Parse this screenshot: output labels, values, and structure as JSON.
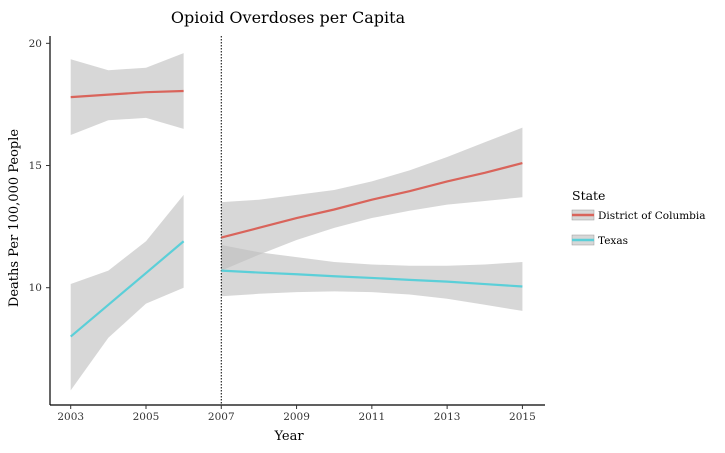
{
  "chart_data": {
    "type": "line",
    "title": "Opioid Overdoses per Capita",
    "xlabel": "Year",
    "ylabel": "Deaths Per 100,000 People",
    "xlim": [
      2002.45,
      2015.6
    ],
    "ylim": [
      5.2,
      20.3
    ],
    "x_ticks": [
      2003,
      2005,
      2007,
      2009,
      2011,
      2013,
      2015
    ],
    "y_ticks": [
      10,
      15,
      20
    ],
    "grid": false,
    "vline": {
      "x": 2007,
      "style": "dotted"
    },
    "legend": {
      "title": "State",
      "position": "right"
    },
    "series": [
      {
        "name": "District of Columbia",
        "color": "#D9645B",
        "segments": [
          {
            "x": [
              2003,
              2004,
              2005,
              2006
            ],
            "y": [
              17.8,
              17.9,
              18.0,
              18.05
            ],
            "ci_low": [
              16.25,
              16.85,
              16.95,
              16.5
            ],
            "ci_high": [
              19.35,
              18.9,
              19.0,
              19.6
            ]
          },
          {
            "x": [
              2007,
              2008,
              2009,
              2010,
              2011,
              2012,
              2013,
              2014,
              2015
            ],
            "y": [
              12.05,
              12.45,
              12.85,
              13.2,
              13.6,
              13.95,
              14.35,
              14.7,
              15.1
            ],
            "ci_low": [
              10.7,
              11.35,
              11.95,
              12.45,
              12.85,
              13.15,
              13.4,
              13.55,
              13.7
            ],
            "ci_high": [
              13.5,
              13.6,
              13.8,
              14.0,
              14.35,
              14.8,
              15.35,
              15.95,
              16.55
            ]
          }
        ]
      },
      {
        "name": "Texas",
        "color": "#5BCFD8",
        "segments": [
          {
            "x": [
              2003,
              2004,
              2005,
              2006
            ],
            "y": [
              8.0,
              9.3,
              10.6,
              11.9
            ],
            "ci_low": [
              5.8,
              7.95,
              9.35,
              10.0
            ],
            "ci_high": [
              10.15,
              10.7,
              11.9,
              13.8
            ]
          },
          {
            "x": [
              2007,
              2008,
              2009,
              2010,
              2011,
              2012,
              2013,
              2014,
              2015
            ],
            "y": [
              10.7,
              10.62,
              10.55,
              10.47,
              10.4,
              10.32,
              10.25,
              10.15,
              10.05
            ],
            "ci_low": [
              9.65,
              9.75,
              9.82,
              9.85,
              9.82,
              9.72,
              9.55,
              9.3,
              9.05
            ],
            "ci_high": [
              11.75,
              11.45,
              11.25,
              11.05,
              10.95,
              10.9,
              10.9,
              10.95,
              11.05
            ]
          }
        ]
      }
    ],
    "band_color": "#BEBEBE"
  }
}
